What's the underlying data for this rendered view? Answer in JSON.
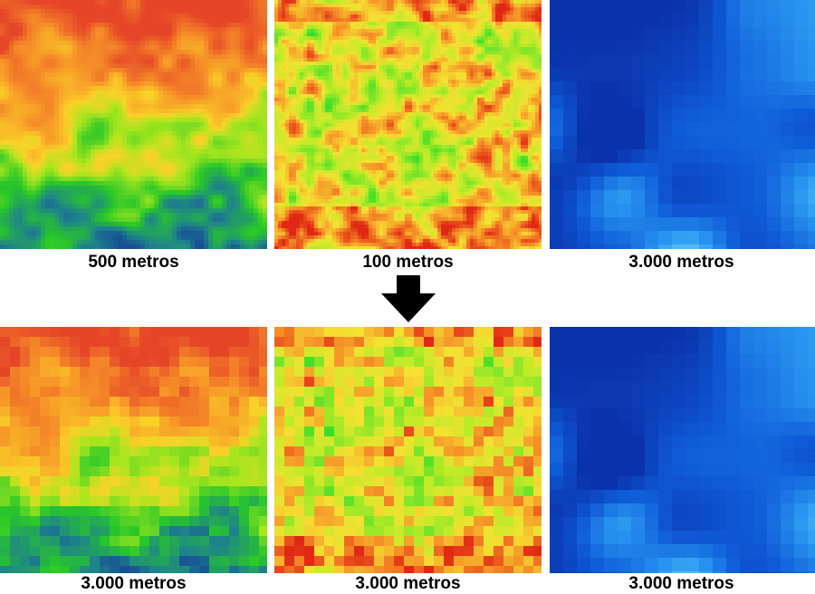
{
  "top_row": [
    {
      "caption": "500 metros",
      "map": "elevation-map"
    },
    {
      "caption": "100 metros",
      "map": "slope-map"
    },
    {
      "caption": "3.000 metros",
      "map": "blue-raster-map"
    }
  ],
  "bottom_row": [
    {
      "caption": "3.000 metros",
      "map": "elevation-map-resampled"
    },
    {
      "caption": "3.000 metros",
      "map": "slope-map-resampled"
    },
    {
      "caption": "3.000 metros",
      "map": "blue-raster-map"
    }
  ],
  "arrow_icon": "down-arrow-icon"
}
